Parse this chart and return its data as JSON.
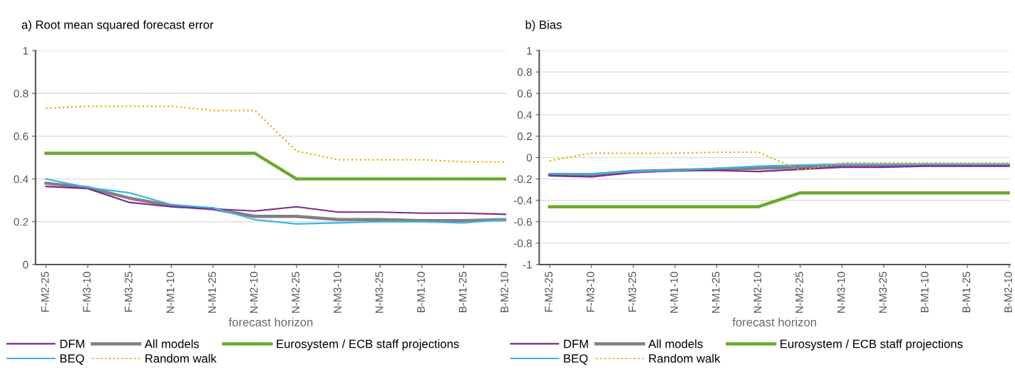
{
  "chart_data": [
    {
      "type": "line",
      "title": "a) Root mean squared forecast error",
      "xlabel": "forecast horizon",
      "categories": [
        "F-M2-25",
        "F-M3-10",
        "F-M3-25",
        "N-M1-10",
        "N-M1-25",
        "N-M2-10",
        "N-M2-25",
        "N-M3-10",
        "N-M3-25",
        "B-M1-10",
        "B-M1-25",
        "B-M2-10"
      ],
      "ylim": [
        0,
        1
      ],
      "yticks": [
        0,
        0.2,
        0.4,
        0.6,
        0.8,
        1
      ],
      "grid": "y",
      "legend": "bottom",
      "marker": "none",
      "series": [
        {
          "name": "DFM",
          "color": "#7b2a90",
          "line_style": "solid",
          "values": [
            0.365,
            0.355,
            0.29,
            0.27,
            0.26,
            0.25,
            0.27,
            0.245,
            0.245,
            0.24,
            0.24,
            0.235
          ]
        },
        {
          "name": "BEQ",
          "color": "#3bb4ea",
          "line_style": "solid",
          "values": [
            0.4,
            0.36,
            0.335,
            0.28,
            0.265,
            0.21,
            0.19,
            0.195,
            0.2,
            0.2,
            0.195,
            0.21
          ]
        },
        {
          "name": "All models",
          "color": "#808080",
          "line_style": "solid",
          "values": [
            0.38,
            0.36,
            0.31,
            0.275,
            0.26,
            0.225,
            0.225,
            0.21,
            0.21,
            0.205,
            0.205,
            0.21
          ]
        },
        {
          "name": "Random walk",
          "color": "#f0a800",
          "line_style": "dotted",
          "values": [
            0.73,
            0.74,
            0.74,
            0.74,
            0.72,
            0.72,
            0.53,
            0.49,
            0.49,
            0.49,
            0.48,
            0.48
          ]
        },
        {
          "name": "Eurosystem / ECB staff projections",
          "color": "#6aaa2a",
          "line_style": "solid",
          "values": [
            0.52,
            0.52,
            0.52,
            0.52,
            0.52,
            0.52,
            0.4,
            0.4,
            0.4,
            0.4,
            0.4,
            0.4
          ]
        }
      ]
    },
    {
      "type": "line",
      "title": "b) Bias",
      "xlabel": "forecast horizon",
      "categories": [
        "F-M2-25",
        "F-M3-10",
        "F-M3-25",
        "N-M1-10",
        "N-M1-25",
        "N-M2-10",
        "N-M2-25",
        "N-M3-10",
        "N-M3-25",
        "B-M1-10",
        "B-M1-25",
        "B-M2-10"
      ],
      "ylim": [
        -1,
        1
      ],
      "yticks": [
        -1,
        -0.8,
        -0.6,
        -0.4,
        -0.2,
        0,
        0.2,
        0.4,
        0.6,
        0.8,
        1
      ],
      "grid": "y",
      "legend": "bottom",
      "marker": "none",
      "series": [
        {
          "name": "DFM",
          "color": "#7b2a90",
          "line_style": "solid",
          "values": [
            -0.17,
            -0.18,
            -0.14,
            -0.12,
            -0.12,
            -0.13,
            -0.11,
            -0.09,
            -0.09,
            -0.08,
            -0.08,
            -0.08
          ]
        },
        {
          "name": "BEQ",
          "color": "#3bb4ea",
          "line_style": "solid",
          "values": [
            -0.15,
            -0.15,
            -0.13,
            -0.12,
            -0.1,
            -0.08,
            -0.07,
            -0.06,
            -0.06,
            -0.06,
            -0.06,
            -0.06
          ]
        },
        {
          "name": "All models",
          "color": "#808080",
          "line_style": "solid",
          "values": [
            -0.16,
            -0.16,
            -0.13,
            -0.12,
            -0.11,
            -0.1,
            -0.09,
            -0.08,
            -0.08,
            -0.07,
            -0.07,
            -0.07
          ]
        },
        {
          "name": "Random walk",
          "color": "#f0a800",
          "line_style": "dotted",
          "values": [
            -0.03,
            0.04,
            0.04,
            0.04,
            0.05,
            0.05,
            -0.12,
            -0.05,
            -0.05,
            -0.05,
            -0.05,
            -0.05
          ]
        },
        {
          "name": "Eurosystem / ECB staff projections",
          "color": "#6aaa2a",
          "line_style": "solid",
          "values": [
            -0.46,
            -0.46,
            -0.46,
            -0.46,
            -0.46,
            -0.46,
            -0.33,
            -0.33,
            -0.33,
            -0.33,
            -0.33,
            -0.33
          ]
        }
      ]
    }
  ]
}
